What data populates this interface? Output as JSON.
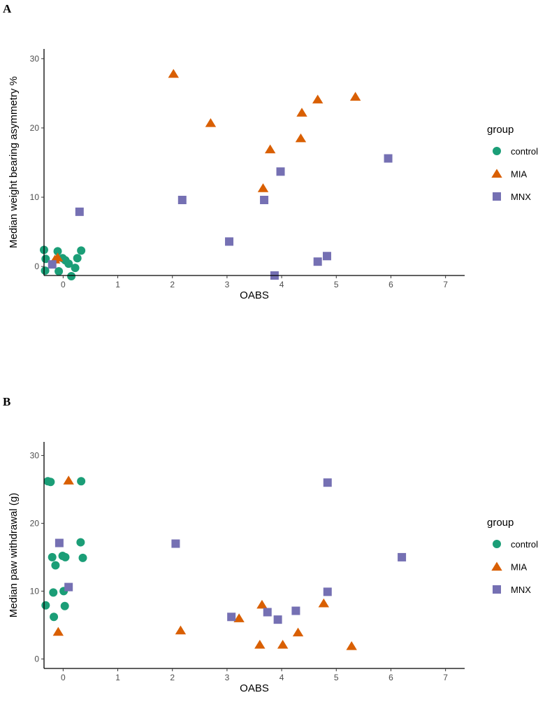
{
  "colors": {
    "control": "#1b9e77",
    "MIA": "#d95f02",
    "MNX": "#7570b3",
    "axis": "#000000",
    "tick_text": "#4d4d4d"
  },
  "chart_data": [
    {
      "panel": "A",
      "type": "scatter",
      "xlabel": "OABS",
      "ylabel": "Median weight bearing asymmetry %",
      "xlim": [
        -0.35,
        7.35
      ],
      "ylim": [
        -1.3,
        31.4
      ],
      "xticks": [
        0,
        1,
        2,
        3,
        4,
        5,
        6,
        7
      ],
      "yticks": [
        0,
        10,
        20,
        30
      ],
      "grid": false,
      "legend": {
        "title": "group",
        "placement": "right",
        "entries": [
          "control",
          "MIA",
          "MNX"
        ]
      },
      "series": [
        {
          "name": "control",
          "shape": "circle",
          "points": [
            [
              -0.1,
              2.2
            ],
            [
              -0.35,
              2.4
            ],
            [
              -0.32,
              1.1
            ],
            [
              -0.33,
              -0.6
            ],
            [
              -0.08,
              -0.7
            ],
            [
              0.15,
              -1.4
            ],
            [
              0.33,
              2.3
            ],
            [
              0.26,
              1.2
            ],
            [
              0.22,
              -0.2
            ],
            [
              0.04,
              0.9
            ],
            [
              0.1,
              0.4
            ],
            [
              -0.01,
              1.2
            ]
          ]
        },
        {
          "name": "MIA",
          "shape": "triangle",
          "points": [
            [
              -0.15,
              1.0
            ],
            [
              -0.1,
              1.3
            ],
            [
              2.02,
              27.8
            ],
            [
              2.7,
              20.7
            ],
            [
              3.66,
              11.3
            ],
            [
              3.79,
              16.9
            ],
            [
              4.35,
              18.5
            ],
            [
              4.37,
              22.2
            ],
            [
              4.66,
              24.1
            ],
            [
              5.35,
              24.5
            ]
          ]
        },
        {
          "name": "MNX",
          "shape": "square",
          "points": [
            [
              -0.2,
              0.3
            ],
            [
              0.3,
              7.9
            ],
            [
              2.18,
              9.6
            ],
            [
              3.04,
              3.6
            ],
            [
              3.68,
              9.6
            ],
            [
              3.87,
              -1.3
            ],
            [
              3.98,
              13.7
            ],
            [
              4.66,
              0.7
            ],
            [
              4.83,
              1.5
            ],
            [
              5.95,
              15.6
            ]
          ]
        }
      ]
    },
    {
      "panel": "B",
      "type": "scatter",
      "xlabel": "OABS",
      "ylabel": "Median paw withdrawal (g)",
      "xlim": [
        -0.35,
        7.35
      ],
      "ylim": [
        -1.4,
        32
      ],
      "xticks": [
        0,
        1,
        2,
        3,
        4,
        5,
        6,
        7
      ],
      "yticks": [
        0,
        10,
        20,
        30
      ],
      "grid": false,
      "legend": {
        "title": "group",
        "placement": "right",
        "entries": [
          "control",
          "MIA",
          "MNX"
        ]
      },
      "series": [
        {
          "name": "control",
          "shape": "circle",
          "points": [
            [
              -0.28,
              26.2
            ],
            [
              -0.23,
              26.1
            ],
            [
              0.33,
              26.2
            ],
            [
              0.32,
              17.2
            ],
            [
              -0.2,
              15.0
            ],
            [
              -0.01,
              15.2
            ],
            [
              0.04,
              15.0
            ],
            [
              0.36,
              14.9
            ],
            [
              -0.14,
              13.8
            ],
            [
              -0.18,
              9.8
            ],
            [
              0.01,
              10.0
            ],
            [
              -0.32,
              7.9
            ],
            [
              0.03,
              7.8
            ],
            [
              -0.17,
              6.2
            ]
          ]
        },
        {
          "name": "MIA",
          "shape": "triangle",
          "points": [
            [
              0.1,
              26.3
            ],
            [
              -0.09,
              4.0
            ],
            [
              2.15,
              4.2
            ],
            [
              3.22,
              6.0
            ],
            [
              3.64,
              8.0
            ],
            [
              3.6,
              2.1
            ],
            [
              4.02,
              2.1
            ],
            [
              4.3,
              3.9
            ],
            [
              4.77,
              8.2
            ],
            [
              5.28,
              1.9
            ]
          ]
        },
        {
          "name": "MNX",
          "shape": "square",
          "points": [
            [
              -0.07,
              17.1
            ],
            [
              0.1,
              10.6
            ],
            [
              2.06,
              17.0
            ],
            [
              3.08,
              6.2
            ],
            [
              3.74,
              6.9
            ],
            [
              3.93,
              5.8
            ],
            [
              4.26,
              7.1
            ],
            [
              4.84,
              26.0
            ],
            [
              4.84,
              9.9
            ],
            [
              6.2,
              15.0
            ]
          ]
        }
      ]
    }
  ]
}
